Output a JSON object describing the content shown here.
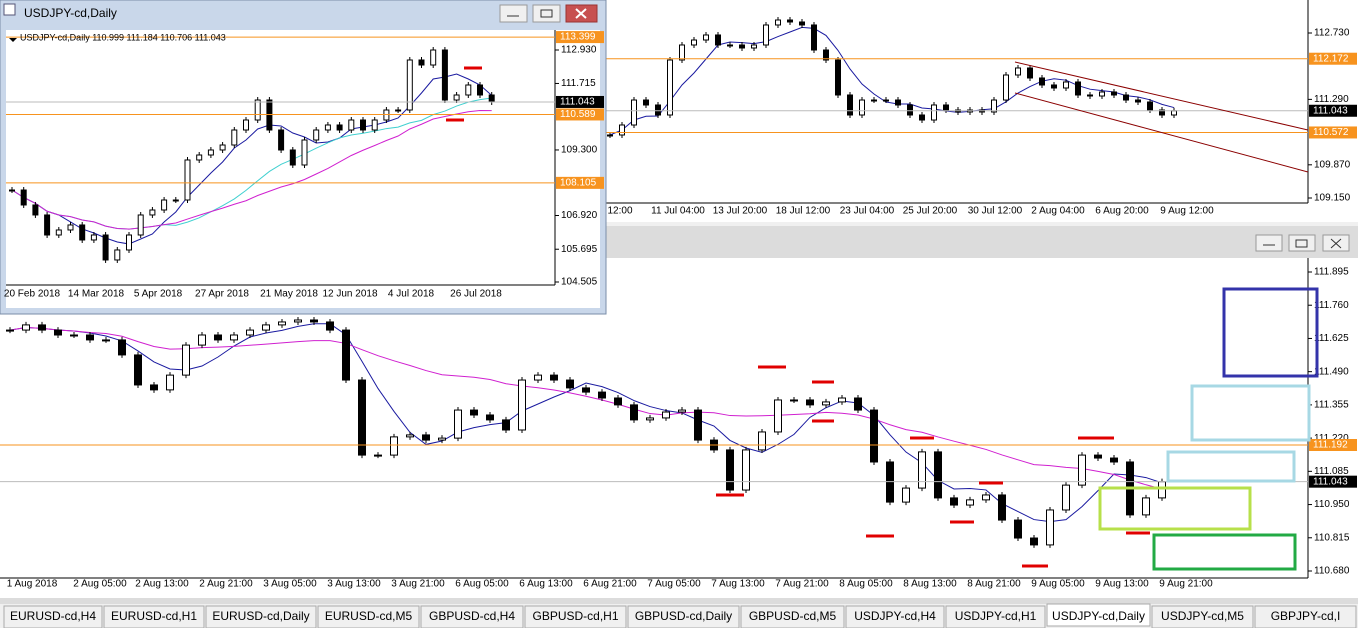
{
  "floating_window": {
    "title": "USDJPY-cd,Daily",
    "info": "USDJPY-cd,Daily  110.999 111.184 110.706 111.043",
    "price_ticks": [
      {
        "value": 112.93,
        "label": "112.930"
      },
      {
        "value": 111.715,
        "label": "111.715"
      },
      {
        "value": 109.3,
        "label": "109.300"
      },
      {
        "value": 106.92,
        "label": "106.920"
      },
      {
        "value": 105.695,
        "label": "105.695"
      },
      {
        "value": 104.505,
        "label": "104.505"
      }
    ],
    "levels": [
      {
        "value": 113.399,
        "label": "113.399",
        "color": "#f7931e"
      },
      {
        "value": 110.589,
        "label": "110.589",
        "color": "#f7931e"
      },
      {
        "value": 108.105,
        "label": "108.105",
        "color": "#f7931e"
      },
      {
        "value": 111.043,
        "label": "111.043",
        "color": "#000000"
      }
    ],
    "time_labels": [
      "20 Feb 2018",
      "14 Mar 2018",
      "5 Apr 2018",
      "27 Apr 2018",
      "21 May 2018",
      "12 Jun 2018",
      "4 Jul 2018",
      "26 Jul 2018"
    ],
    "closes": [
      107.846,
      107.302,
      106.939,
      106.212,
      106.394,
      106.576,
      106.031,
      106.212,
      105.305,
      105.668,
      106.212,
      106.939,
      107.12,
      107.483,
      107.483,
      108.936,
      109.117,
      109.299,
      109.48,
      110.025,
      110.388,
      111.114,
      110.025,
      109.299,
      108.754,
      109.662,
      110.025,
      110.207,
      110.025,
      110.388,
      110.025,
      110.388,
      110.751,
      110.751,
      112.567,
      112.385,
      112.93,
      111.114,
      111.296,
      111.659,
      111.296,
      111.043
    ]
  },
  "top_chart": {
    "price_ticks": [
      {
        "value": 112.73,
        "label": "112.730"
      },
      {
        "value": 111.29,
        "label": "111.290"
      },
      {
        "value": 109.87,
        "label": "109.870"
      },
      {
        "value": 109.15,
        "label": "109.150"
      }
    ],
    "levels": [
      {
        "value": 112.172,
        "label": "112.172",
        "color": "#f7931e"
      },
      {
        "value": 110.572,
        "label": "110.572",
        "color": "#f7931e"
      },
      {
        "value": 111.043,
        "label": "111.043",
        "color": "#000000"
      }
    ],
    "time_labels": [
      "12:00",
      "11 Jul 04:00",
      "13 Jul 20:00",
      "18 Jul 12:00",
      "23 Jul 04:00",
      "25 Jul 20:00",
      "30 Jul 12:00",
      "2 Aug 04:00",
      "6 Aug 20:00",
      "9 Aug 12:00"
    ],
    "closes": [
      110.517,
      110.734,
      111.276,
      111.168,
      110.951,
      112.144,
      112.47,
      112.578,
      112.687,
      112.47,
      112.47,
      112.405,
      112.47,
      112.904,
      113.012,
      112.969,
      112.904,
      112.361,
      112.144,
      111.385,
      110.951,
      111.276,
      111.276,
      111.276,
      111.168,
      110.951,
      110.842,
      111.168,
      111.059,
      111.016,
      111.059,
      111.016,
      111.276,
      111.819,
      111.971,
      111.754,
      111.602,
      111.537,
      111.667,
      111.385,
      111.363,
      111.45,
      111.385,
      111.276,
      111.233,
      111.059,
      110.951,
      111.043
    ]
  },
  "bottom_chart": {
    "price_ticks": [
      {
        "value": 111.895,
        "label": "111.895"
      },
      {
        "value": 111.76,
        "label": "111.760"
      },
      {
        "value": 111.625,
        "label": "111.625"
      },
      {
        "value": 111.49,
        "label": "111.490"
      },
      {
        "value": 111.355,
        "label": "111.355"
      },
      {
        "value": 111.22,
        "label": "111.220"
      },
      {
        "value": 111.085,
        "label": "111.085"
      },
      {
        "value": 110.95,
        "label": "110.950"
      },
      {
        "value": 110.815,
        "label": "110.815"
      },
      {
        "value": 110.68,
        "label": "110.680"
      }
    ],
    "levels": [
      {
        "value": 111.192,
        "label": "111.192",
        "color": "#f7931e"
      },
      {
        "value": 111.043,
        "label": "111.043",
        "color": "#000000"
      }
    ],
    "time_labels": [
      "1 Aug 2018",
      "2 Aug 05:00",
      "2 Aug 13:00",
      "2 Aug 21:00",
      "3 Aug 05:00",
      "3 Aug 13:00",
      "3 Aug 21:00",
      "6 Aug 05:00",
      "6 Aug 13:00",
      "6 Aug 21:00",
      "7 Aug 05:00",
      "7 Aug 13:00",
      "7 Aug 21:00",
      "8 Aug 05:00",
      "8 Aug 13:00",
      "8 Aug 21:00",
      "9 Aug 05:00",
      "9 Aug 13:00",
      "9 Aug 21:00"
    ],
    "closes": [
      111.659,
      111.68,
      111.659,
      111.639,
      111.639,
      111.619,
      111.619,
      111.558,
      111.436,
      111.416,
      111.476,
      111.598,
      111.639,
      111.619,
      111.639,
      111.659,
      111.68,
      111.692,
      111.7,
      111.692,
      111.659,
      111.456,
      111.151,
      111.151,
      111.225,
      111.233,
      111.212,
      111.22,
      111.334,
      111.314,
      111.294,
      111.253,
      111.456,
      111.476,
      111.456,
      111.424,
      111.407,
      111.383,
      111.355,
      111.294,
      111.302,
      111.326,
      111.334,
      111.212,
      111.172,
      111.009,
      111.172,
      111.245,
      111.375,
      111.375,
      111.355,
      111.367,
      111.383,
      111.334,
      111.123,
      110.96,
      111.017,
      111.164,
      110.977,
      110.948,
      110.969,
      110.989,
      110.887,
      110.814,
      110.786,
      110.928,
      111.029,
      111.151,
      111.139,
      111.123,
      110.908,
      110.977,
      111.043
    ]
  },
  "tabs": [
    "EURUSD-cd,H4",
    "EURUSD-cd,H1",
    "EURUSD-cd,Daily",
    "EURUSD-cd,M5",
    "GBPUSD-cd,H4",
    "GBPUSD-cd,H1",
    "GBPUSD-cd,Daily",
    "GBPUSD-cd,M5",
    "USDJPY-cd,H4",
    "USDJPY-cd,H1",
    "USDJPY-cd,Daily",
    "USDJPY-cd,M5",
    "GBPJPY-cd,I"
  ]
}
